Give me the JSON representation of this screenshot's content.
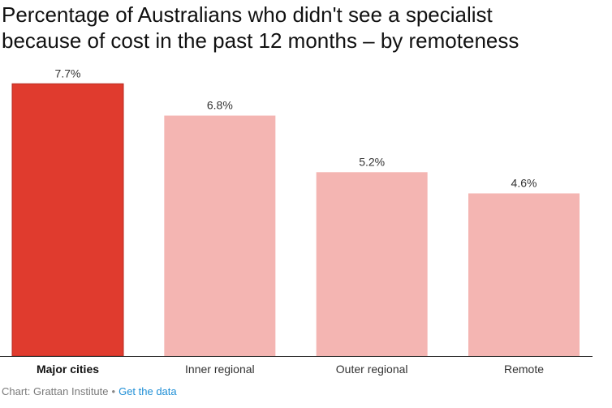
{
  "chart_data": {
    "type": "bar",
    "title": "Percentage of Australians who didn't see a specialist because of cost in the past 12 months – by remoteness",
    "title_lines": [
      "Percentage of Australians who didn't see a specialist",
      "because of cost in the past 12 months – by remoteness"
    ],
    "categories": [
      "Major cities",
      "Inner regional",
      "Outer regional",
      "Remote"
    ],
    "values": [
      7.7,
      6.8,
      5.2,
      4.6
    ],
    "value_labels": [
      "7.7%",
      "6.8%",
      "5.2%",
      "4.6%"
    ],
    "highlighted_category": "Major cities",
    "ylim": [
      0,
      8
    ],
    "xlabel": "",
    "ylabel": "",
    "grid": false,
    "legend": "none",
    "colors": {
      "highlight_fill": "#e03b2e",
      "highlight_stroke": "#b72a20",
      "normal_fill": "#f4b5b2",
      "baseline": "#333333"
    }
  },
  "footer": {
    "source": "Chart: Grattan Institute",
    "separator": "•",
    "link_label": "Get the data"
  }
}
